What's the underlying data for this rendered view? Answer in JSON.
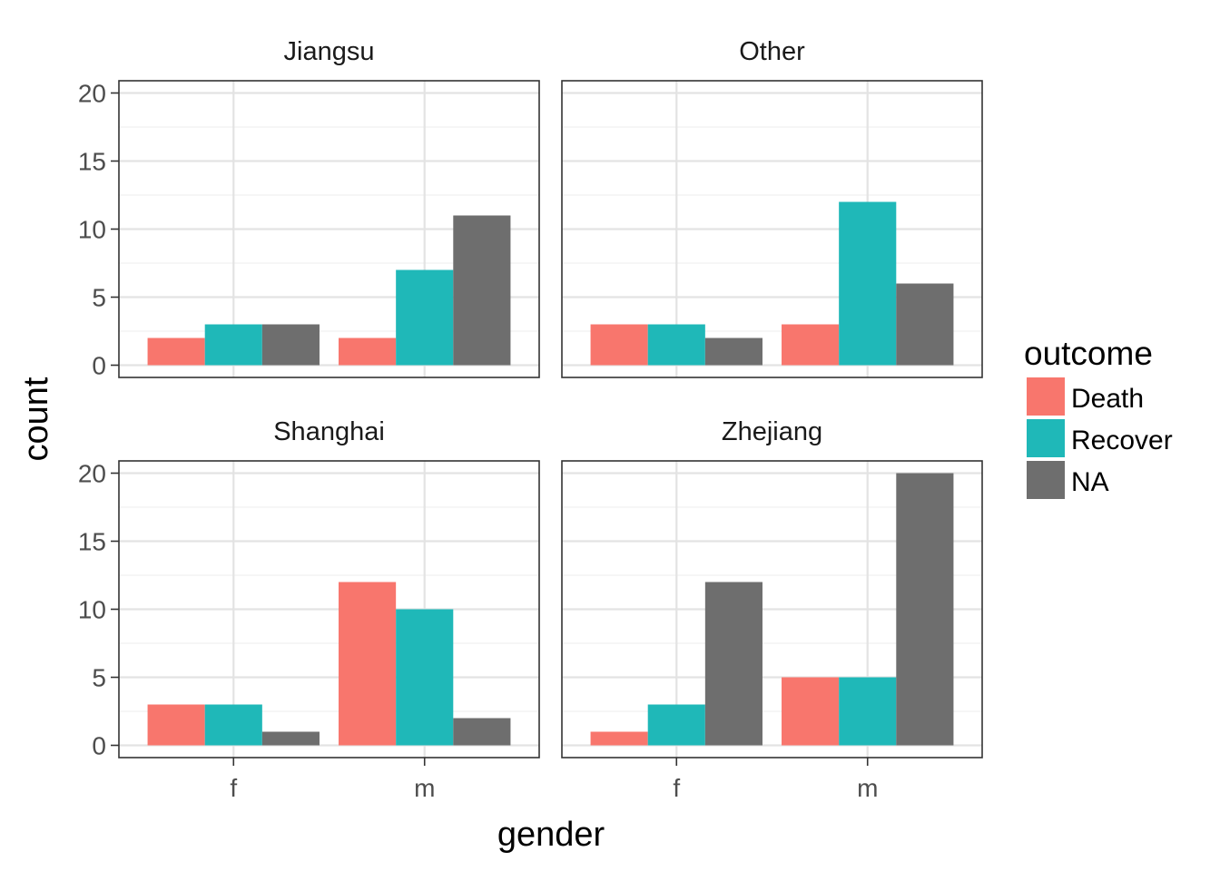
{
  "chart_data": {
    "type": "bar",
    "layout": "facet_wrap 2x2",
    "x_title": "gender",
    "y_title": "count",
    "categories": [
      "f",
      "m"
    ],
    "ylim": [
      0,
      20
    ],
    "y_ticks": [
      "0",
      "5",
      "10",
      "15",
      "20"
    ],
    "grid": true,
    "legend": {
      "title": "outcome",
      "placement": "right",
      "entries": [
        {
          "label": "Death",
          "color": "#F8766D"
        },
        {
          "label": "Recover",
          "color": "#1FB8B8"
        },
        {
          "label": "NA",
          "color": "#6E6E6E"
        }
      ]
    },
    "facets": [
      {
        "title": "Jiangsu",
        "series": [
          {
            "name": "Death",
            "values": [
              2,
              2
            ]
          },
          {
            "name": "Recover",
            "values": [
              3,
              7
            ]
          },
          {
            "name": "NA",
            "values": [
              3,
              11
            ]
          }
        ]
      },
      {
        "title": "Other",
        "series": [
          {
            "name": "Death",
            "values": [
              3,
              3
            ]
          },
          {
            "name": "Recover",
            "values": [
              3,
              12
            ]
          },
          {
            "name": "NA",
            "values": [
              2,
              6
            ]
          }
        ]
      },
      {
        "title": "Shanghai",
        "series": [
          {
            "name": "Death",
            "values": [
              3,
              12
            ]
          },
          {
            "name": "Recover",
            "values": [
              3,
              10
            ]
          },
          {
            "name": "NA",
            "values": [
              1,
              2
            ]
          }
        ]
      },
      {
        "title": "Zhejiang",
        "series": [
          {
            "name": "Death",
            "values": [
              1,
              5
            ]
          },
          {
            "name": "Recover",
            "values": [
              3,
              5
            ]
          },
          {
            "name": "NA",
            "values": [
              12,
              20
            ]
          }
        ]
      }
    ]
  }
}
